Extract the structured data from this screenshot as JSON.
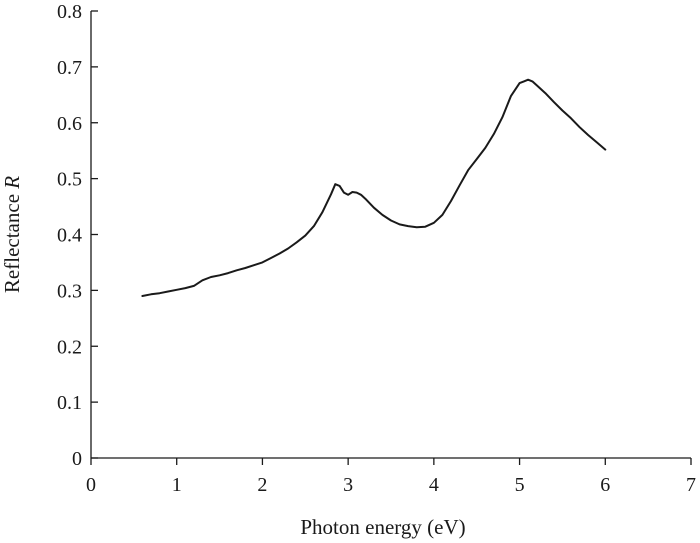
{
  "chart_data": {
    "type": "line",
    "title": "",
    "xlabel": "Photon energy (eV)",
    "ylabel_main": "Reflectance ",
    "ylabel_var": "R",
    "xlim": [
      0,
      7
    ],
    "ylim": [
      0,
      0.8
    ],
    "xticks": [
      "0",
      "1",
      "2",
      "3",
      "4",
      "5",
      "6",
      "7"
    ],
    "yticks": [
      "0",
      "0.1",
      "0.2",
      "0.3",
      "0.4",
      "0.5",
      "0.6",
      "0.7",
      "0.8"
    ],
    "grid": false,
    "legend": "none",
    "line_color": "#1a1a1a",
    "series": [
      {
        "x": [
          0.6,
          0.7,
          0.8,
          0.9,
          1.0,
          1.1,
          1.2,
          1.3,
          1.4,
          1.5,
          1.6,
          1.7,
          1.8,
          1.9,
          2.0,
          2.1,
          2.2,
          2.3,
          2.4,
          2.5,
          2.6,
          2.7,
          2.8,
          2.85,
          2.9,
          2.95,
          3.0,
          3.05,
          3.1,
          3.15,
          3.2,
          3.3,
          3.4,
          3.5,
          3.6,
          3.7,
          3.8,
          3.9,
          4.0,
          4.1,
          4.2,
          4.3,
          4.4,
          4.5,
          4.6,
          4.7,
          4.8,
          4.9,
          5.0,
          5.05,
          5.1,
          5.15,
          5.2,
          5.3,
          5.4,
          5.5,
          5.6,
          5.7,
          5.8,
          5.9,
          6.0
        ],
        "y": [
          0.29,
          0.293,
          0.295,
          0.298,
          0.301,
          0.304,
          0.308,
          0.318,
          0.324,
          0.327,
          0.331,
          0.336,
          0.34,
          0.345,
          0.35,
          0.358,
          0.366,
          0.375,
          0.386,
          0.398,
          0.415,
          0.44,
          0.472,
          0.49,
          0.487,
          0.475,
          0.471,
          0.476,
          0.475,
          0.471,
          0.464,
          0.448,
          0.435,
          0.425,
          0.418,
          0.415,
          0.413,
          0.414,
          0.421,
          0.435,
          0.46,
          0.488,
          0.515,
          0.535,
          0.555,
          0.58,
          0.61,
          0.648,
          0.671,
          0.674,
          0.677,
          0.674,
          0.667,
          0.653,
          0.637,
          0.622,
          0.608,
          0.592,
          0.578,
          0.565,
          0.552
        ]
      }
    ]
  }
}
